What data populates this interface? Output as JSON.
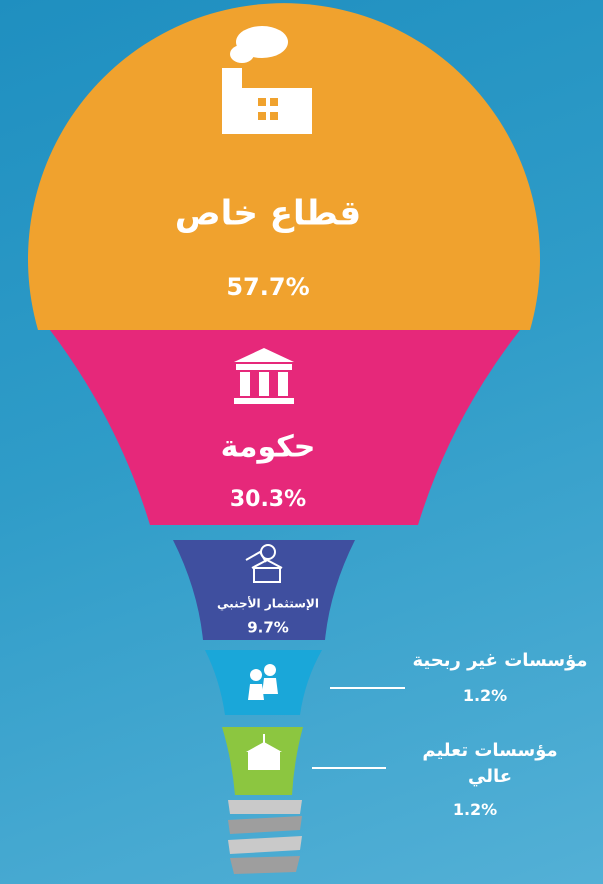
{
  "chart_data": {
    "type": "funnel",
    "categories": [
      "قطاع خاص",
      "حكومة",
      "الإستثمار الأجنبي",
      "مؤسسات غير ربحية",
      "مؤسسات تعليم عالي"
    ],
    "values": [
      57.7,
      30.3,
      9.7,
      1.2,
      1.2
    ],
    "value_labels": [
      "57.7%",
      "30.3%",
      "9.7%",
      "1.2%",
      "1.2%"
    ],
    "colors": [
      "#f0a22e",
      "#e6287a",
      "#3f4f9f",
      "#1aa7d9",
      "#8cc640"
    ]
  }
}
